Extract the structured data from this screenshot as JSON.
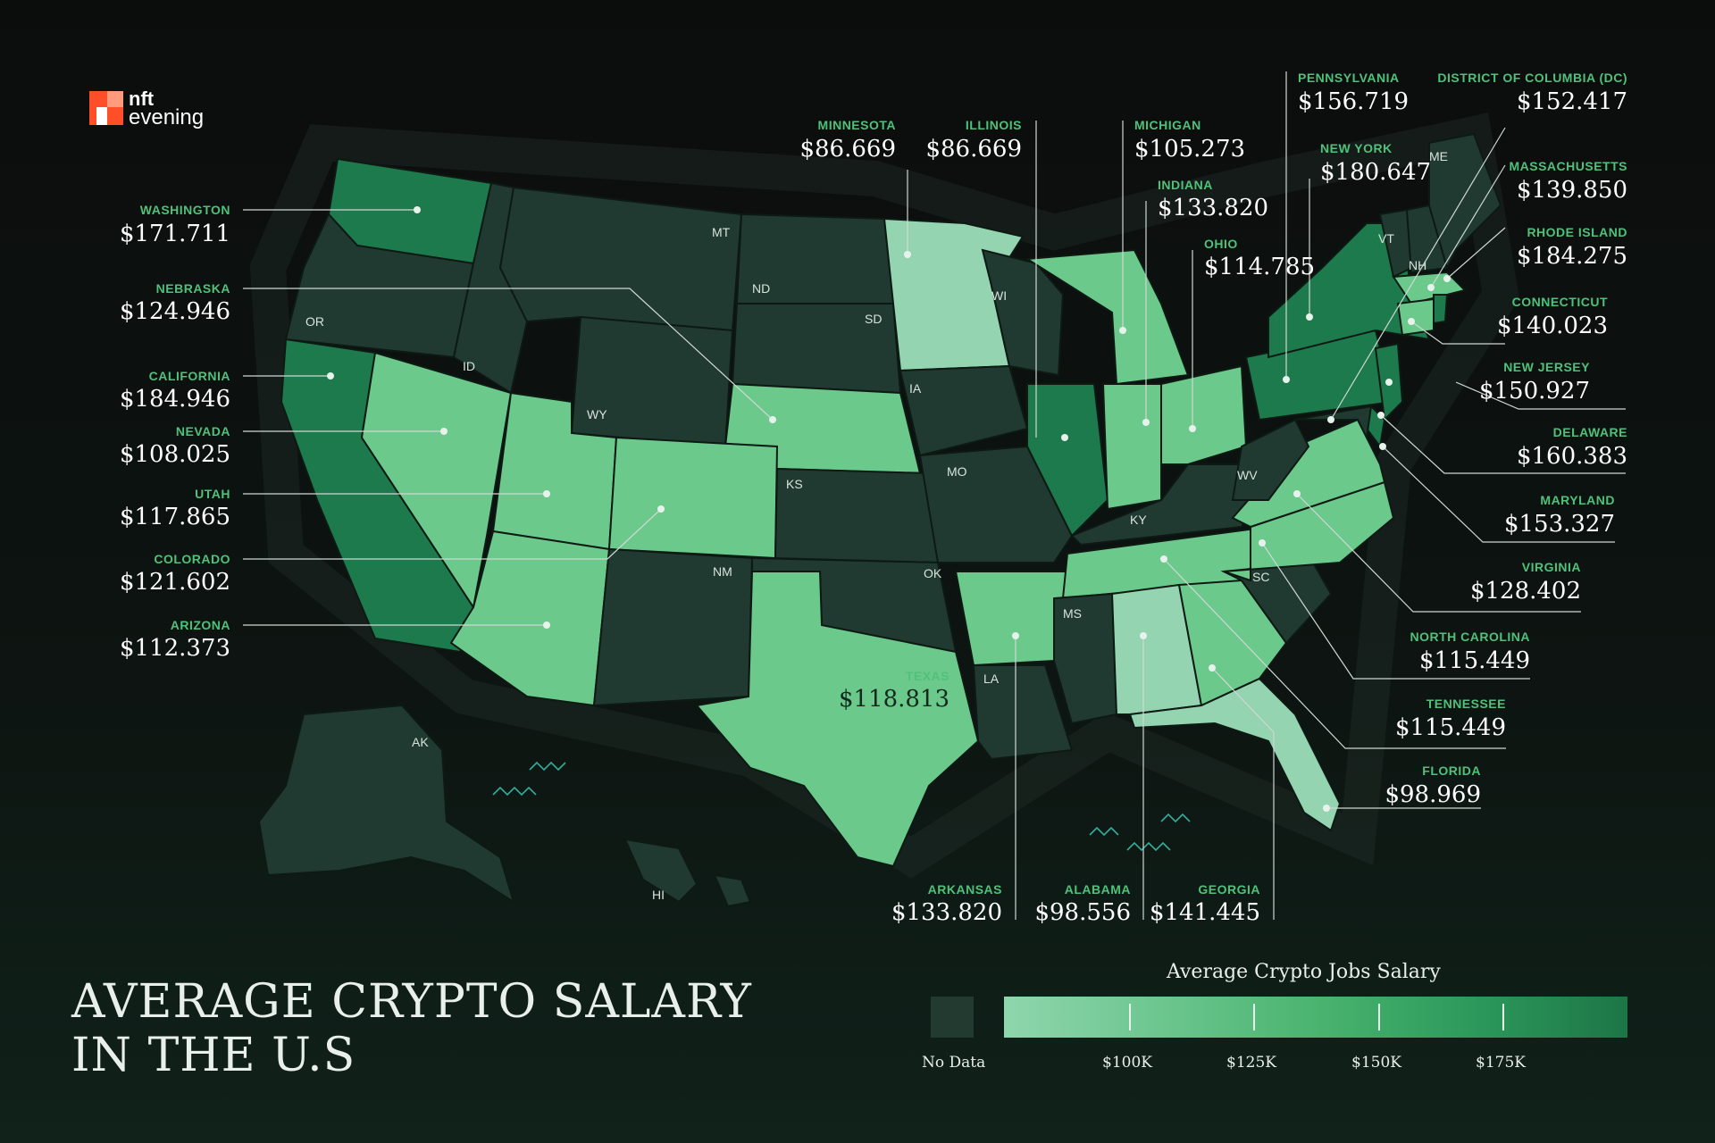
{
  "logo": {
    "line1": "nft",
    "line2": "evening"
  },
  "title_lines": [
    "AVERAGE CRYPTO SALARY",
    "IN THE U.S"
  ],
  "legend": {
    "title": "Average Crypto Jobs Salary",
    "no_data": "No Data",
    "ticks": [
      "$100K",
      "$125K",
      "$150K",
      "$175K"
    ],
    "colors": {
      "no_data": "#223a30",
      "low": "#8fd6ad",
      "high": "#1d7546"
    }
  },
  "colors": {
    "no_data": "#213a31",
    "light": "#94d4b0",
    "mid": "#6cc98c",
    "dark": "#1d7a4c",
    "label": "#4fc17a"
  },
  "state_abbreviations": [
    "OR",
    "ID",
    "MT",
    "ND",
    "SD",
    "WY",
    "WI",
    "IA",
    "MO",
    "KS",
    "NM",
    "OK",
    "LA",
    "MS",
    "KY",
    "WV",
    "SC",
    "VT",
    "NH",
    "ME",
    "AK",
    "HI"
  ],
  "labels": [
    {
      "name": "WASHINGTON",
      "value": "$171.711"
    },
    {
      "name": "NEBRASKA",
      "value": "$124.946"
    },
    {
      "name": "CALIFORNIA",
      "value": "$184.946"
    },
    {
      "name": "NEVADA",
      "value": "$108.025"
    },
    {
      "name": "UTAH",
      "value": "$117.865"
    },
    {
      "name": "COLORADO",
      "value": "$121.602"
    },
    {
      "name": "ARIZONA",
      "value": "$112.373"
    },
    {
      "name": "MINNESOTA",
      "value": "$86.669"
    },
    {
      "name": "ILLINOIS",
      "value": "$86.669"
    },
    {
      "name": "MICHIGAN",
      "value": "$105.273"
    },
    {
      "name": "INDIANA",
      "value": "$133.820"
    },
    {
      "name": "OHIO",
      "value": "$114.785"
    },
    {
      "name": "PENNSYLVANIA",
      "value": "$156.719"
    },
    {
      "name": "NEW YORK",
      "value": "$180.647"
    },
    {
      "name": "DISTRICT OF COLUMBIA (DC)",
      "value": "$152.417"
    },
    {
      "name": "MASSACHUSETTS",
      "value": "$139.850"
    },
    {
      "name": "RHODE ISLAND",
      "value": "$184.275"
    },
    {
      "name": "CONNECTICUT",
      "value": "$140.023"
    },
    {
      "name": "NEW JERSEY",
      "value": "$150.927"
    },
    {
      "name": "DELAWARE",
      "value": "$160.383"
    },
    {
      "name": "MARYLAND",
      "value": "$153.327"
    },
    {
      "name": "VIRGINIA",
      "value": "$128.402"
    },
    {
      "name": "NORTH CAROLINA",
      "value": "$115.449"
    },
    {
      "name": "TENNESSEE",
      "value": "$115.449"
    },
    {
      "name": "FLORIDA",
      "value": "$98.969"
    },
    {
      "name": "TEXAS",
      "value": "$118.813"
    },
    {
      "name": "ARKANSAS",
      "value": "$133.820"
    },
    {
      "name": "ALABAMA",
      "value": "$98.556"
    },
    {
      "name": "GEORGIA",
      "value": "$141.445"
    }
  ]
}
